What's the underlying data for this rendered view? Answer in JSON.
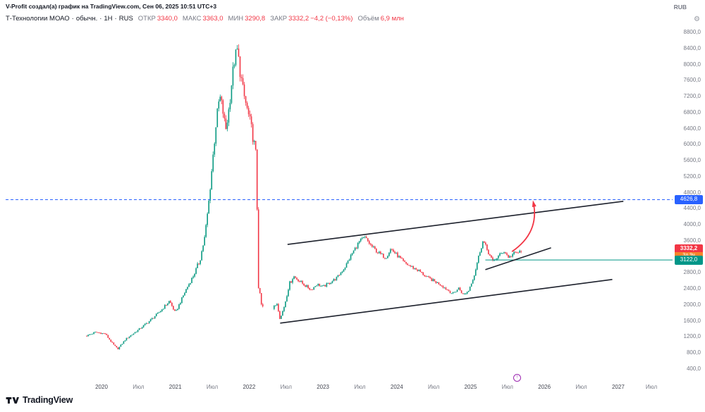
{
  "header": {
    "attribution": "V-Profit создал(а) график на TradingView.com, Сен 06, 2025 10:51 UTC+3",
    "symbol": {
      "name": "Т-Технологии МОАО",
      "type": "обычн.",
      "timeframe": "1Н",
      "market": "RUS",
      "separator": "·"
    },
    "ohlc": [
      {
        "label": "ОТКР",
        "value": "3340,0"
      },
      {
        "label": "МАКС",
        "value": "3363,0"
      },
      {
        "label": "МИН",
        "value": "3290,8"
      },
      {
        "label": "ЗАКР",
        "value": "3332,2"
      }
    ],
    "change": "−4,2 (−0,13%)",
    "volume_label": "Объём",
    "volume_value": "6,9 млн",
    "currency": "RUB"
  },
  "footer": {
    "brand": "TradingView"
  },
  "chart_data": {
    "type": "candlestick",
    "title": "Т-Технологии МОАО · обычн. · 1Н · RUS, weekly candles, RUB",
    "x_axis": {
      "ticks": [
        {
          "label": "2020",
          "t": 2020,
          "major": true
        },
        {
          "label": "Июл",
          "t": 2020.5,
          "major": false
        },
        {
          "label": "2021",
          "t": 2021,
          "major": true
        },
        {
          "label": "Июл",
          "t": 2021.5,
          "major": false
        },
        {
          "label": "2022",
          "t": 2022,
          "major": true
        },
        {
          "label": "Июл",
          "t": 2022.5,
          "major": false
        },
        {
          "label": "2023",
          "t": 2023,
          "major": true
        },
        {
          "label": "Июл",
          "t": 2023.5,
          "major": false
        },
        {
          "label": "2024",
          "t": 2024,
          "major": true
        },
        {
          "label": "Июл",
          "t": 2024.5,
          "major": false
        },
        {
          "label": "2025",
          "t": 2025,
          "major": true
        },
        {
          "label": "Июл",
          "t": 2025.5,
          "major": false
        },
        {
          "label": "2026",
          "t": 2026,
          "major": true
        },
        {
          "label": "Июл",
          "t": 2026.5,
          "major": false
        },
        {
          "label": "2027",
          "t": 2027,
          "major": true
        },
        {
          "label": "Июл",
          "t": 2027.45,
          "major": false
        }
      ]
    },
    "y_axis": {
      "labels": [
        {
          "label": "8800,0",
          "value": 8800
        },
        {
          "label": "8400,0",
          "value": 8400
        },
        {
          "label": "8000,0",
          "value": 8000
        },
        {
          "label": "7600,0",
          "value": 7600
        },
        {
          "label": "7200,0",
          "value": 7200
        },
        {
          "label": "6800,0",
          "value": 6800
        },
        {
          "label": "6400,0",
          "value": 6400
        },
        {
          "label": "6000,0",
          "value": 6000
        },
        {
          "label": "5600,0",
          "value": 5600
        },
        {
          "label": "5200,0",
          "value": 5200
        },
        {
          "label": "4800,0",
          "value": 4800
        },
        {
          "label": "4400,0",
          "value": 4400
        },
        {
          "label": "4000,0",
          "value": 4000
        },
        {
          "label": "3600,0",
          "value": 3600
        },
        {
          "label": "3200,0",
          "value": 3200
        },
        {
          "label": "2800,0",
          "value": 2800
        },
        {
          "label": "2400,0",
          "value": 2400
        },
        {
          "label": "2000,0",
          "value": 2000
        },
        {
          "label": "1600,0",
          "value": 1600
        },
        {
          "label": "1200,0",
          "value": 1200
        },
        {
          "label": "800,0",
          "value": 800
        },
        {
          "label": "400,0",
          "value": 400
        }
      ]
    },
    "colors": {
      "up": "#089981",
      "down": "#f23645",
      "trendline": "#1e222d",
      "dashed_level": "#2962ff",
      "teal_level": "#009688",
      "arrow": "#f23645",
      "marker": "#9c27b0"
    },
    "last_candle": {
      "open": 3340.0,
      "high": 3363.0,
      "low": 3290.8,
      "close": 3332.2
    },
    "price_path": [
      [
        2019.8,
        1230
      ],
      [
        2019.92,
        1320
      ],
      [
        2020.05,
        1280
      ],
      [
        2020.16,
        1010
      ],
      [
        2020.22,
        900
      ],
      [
        2020.33,
        1150
      ],
      [
        2020.5,
        1380
      ],
      [
        2020.65,
        1600
      ],
      [
        2020.8,
        1850
      ],
      [
        2020.92,
        2100
      ],
      [
        2021.0,
        1800
      ],
      [
        2021.05,
        2000
      ],
      [
        2021.15,
        2400
      ],
      [
        2021.25,
        2750
      ],
      [
        2021.33,
        3100
      ],
      [
        2021.4,
        3700
      ],
      [
        2021.45,
        4500
      ],
      [
        2021.5,
        5500
      ],
      [
        2021.55,
        6500
      ],
      [
        2021.6,
        7200
      ],
      [
        2021.64,
        6900
      ],
      [
        2021.68,
        6350
      ],
      [
        2021.72,
        6800
      ],
      [
        2021.76,
        7500
      ],
      [
        2021.8,
        8100
      ],
      [
        2021.84,
        8350
      ],
      [
        2021.88,
        7800
      ],
      [
        2021.92,
        7300
      ],
      [
        2021.97,
        6900
      ],
      [
        2022.02,
        6500
      ],
      [
        2022.07,
        6000
      ],
      [
        2022.1,
        5600
      ],
      [
        2022.12,
        2550
      ],
      [
        2022.17,
        1950
      ],
      [
        2022.3,
        1850
      ],
      [
        2022.38,
        2050
      ],
      [
        2022.42,
        1640
      ],
      [
        2022.48,
        2000
      ],
      [
        2022.54,
        2500
      ],
      [
        2022.6,
        2720
      ],
      [
        2022.68,
        2600
      ],
      [
        2022.76,
        2480
      ],
      [
        2022.84,
        2380
      ],
      [
        2022.92,
        2520
      ],
      [
        2023.0,
        2450
      ],
      [
        2023.1,
        2560
      ],
      [
        2023.2,
        2700
      ],
      [
        2023.3,
        2950
      ],
      [
        2023.4,
        3300
      ],
      [
        2023.5,
        3600
      ],
      [
        2023.57,
        3680
      ],
      [
        2023.65,
        3480
      ],
      [
        2023.75,
        3300
      ],
      [
        2023.85,
        3180
      ],
      [
        2023.92,
        3400
      ],
      [
        2024.0,
        3250
      ],
      [
        2024.1,
        3050
      ],
      [
        2024.2,
        2950
      ],
      [
        2024.3,
        2850
      ],
      [
        2024.4,
        2700
      ],
      [
        2024.5,
        2600
      ],
      [
        2024.6,
        2500
      ],
      [
        2024.68,
        2380
      ],
      [
        2024.76,
        2280
      ],
      [
        2024.84,
        2420
      ],
      [
        2024.9,
        2250
      ],
      [
        2024.97,
        2350
      ],
      [
        2025.05,
        2750
      ],
      [
        2025.12,
        3300
      ],
      [
        2025.17,
        3600
      ],
      [
        2025.23,
        3350
      ],
      [
        2025.3,
        3080
      ],
      [
        2025.38,
        3220
      ],
      [
        2025.45,
        3350
      ],
      [
        2025.52,
        3180
      ],
      [
        2025.58,
        3280
      ],
      [
        2025.63,
        3300
      ],
      [
        2025.69,
        3332.2
      ]
    ],
    "gap": {
      "from": 2022.19,
      "to": 2022.33
    },
    "levels": [
      {
        "price": 4626.8,
        "label": "4626,8",
        "style": "dashed",
        "color": "#2962ff",
        "from_t": null
      },
      {
        "price": 3122.0,
        "label": "3122,0",
        "style": "solid",
        "color": "#009688",
        "from_t": 2025.2
      }
    ],
    "last_price_badge": {
      "price": 3332.2,
      "label": "3332,2",
      "countdown": "3д 9ч",
      "color": "#f23645",
      "countdown_color": "#f7852b"
    },
    "trendlines": [
      {
        "t1": 2022.52,
        "p1": 3510,
        "t2": 2027.07,
        "p2": 4585
      },
      {
        "t1": 2025.2,
        "p1": 2880,
        "t2": 2026.09,
        "p2": 3425
      },
      {
        "t1": 2022.42,
        "p1": 1545,
        "t2": 2026.92,
        "p2": 2635
      }
    ],
    "arrow": {
      "t1": 2025.56,
      "p1": 3330,
      "t2": 2025.85,
      "p2": 4560
    },
    "event_marker": {
      "t": 2025.63,
      "glyph": "↑"
    }
  }
}
